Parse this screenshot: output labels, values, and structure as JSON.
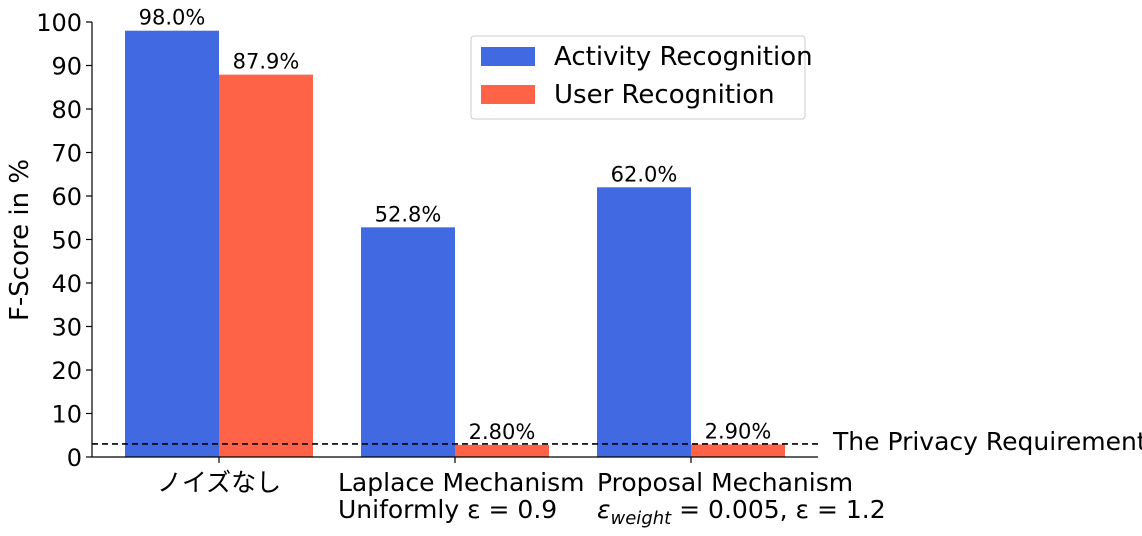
{
  "chart_data": {
    "type": "bar",
    "ylabel": "F-Score in %",
    "ylim": [
      0,
      100
    ],
    "yticks": [
      0,
      10,
      20,
      30,
      40,
      50,
      60,
      70,
      80,
      90,
      100
    ],
    "categories": [
      {
        "line1": "ノイズなし",
        "line2": ""
      },
      {
        "line1": "Laplace Mechanism",
        "line2": "Uniformly  ε  = 0.9"
      },
      {
        "line1": "Proposal Mechanism",
        "line2_eps": "ε",
        "line2_sub": "weight",
        "line2_rest": " = 0.005,  ε = 1.2"
      }
    ],
    "series": [
      {
        "name": "Activity Recognition",
        "color": "#4169e1",
        "values": [
          98.0,
          52.8,
          62.0
        ],
        "labels": [
          "98.0%",
          "52.8%",
          "62.0%"
        ]
      },
      {
        "name": "User Recognition",
        "color": "#ff6347",
        "values": [
          87.9,
          2.8,
          2.9
        ],
        "labels": [
          "87.9%",
          "2.80%",
          "2.90%"
        ]
      }
    ],
    "reference_line": {
      "value": 3,
      "label": "The Privacy Requirement",
      "style": "dashed",
      "color": "#000000"
    },
    "legend": {
      "placement": "top-center"
    },
    "grid": false
  }
}
